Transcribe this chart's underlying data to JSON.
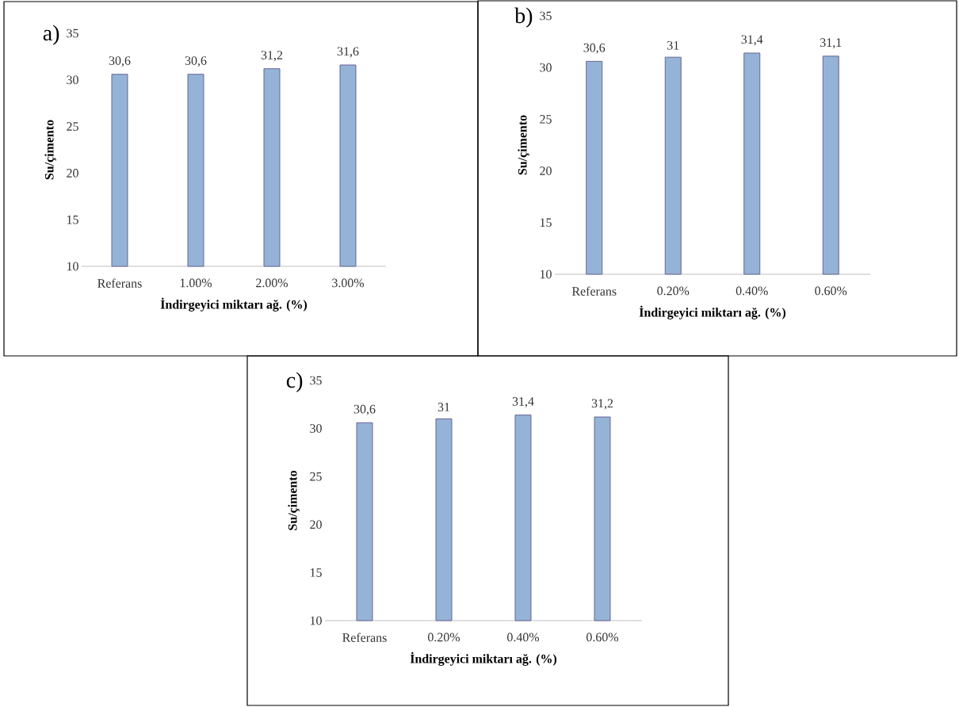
{
  "chart_data": [
    {
      "type": "bar",
      "title": "a)",
      "xlabel": "İndirgeyici miktarı ağ. (%)",
      "ylabel": "Su/çimento",
      "categories": [
        "Referans",
        "1.00%",
        "2.00%",
        "3.00%"
      ],
      "values": [
        30.6,
        30.6,
        31.2,
        31.6
      ],
      "value_labels": [
        "30,6",
        "30,6",
        "31,2",
        "31,6"
      ],
      "color": "#95b3d7",
      "ylim": [
        10,
        35
      ],
      "yticks": [
        10,
        15,
        20,
        25,
        30,
        35
      ]
    },
    {
      "type": "bar",
      "title": "b)",
      "xlabel": "İndirgeyici miktarı ağ. (%)",
      "ylabel": "Su/çimento",
      "categories": [
        "Referans",
        "0.20%",
        "0.40%",
        "0.60%"
      ],
      "values": [
        30.6,
        31,
        31.4,
        31.1
      ],
      "value_labels": [
        "30,6",
        "31",
        "31,4",
        "31,1"
      ],
      "color": "#95b3d7",
      "ylim": [
        10,
        35
      ],
      "yticks": [
        10,
        15,
        20,
        25,
        30,
        35
      ]
    },
    {
      "type": "bar",
      "title": "c)",
      "xlabel": "İndirgeyici miktarı ağ. (%)",
      "ylabel": "Su/çimento",
      "categories": [
        "Referans",
        "0.20%",
        "0.40%",
        "0.60%"
      ],
      "values": [
        30.6,
        31,
        31.4,
        31.2
      ],
      "value_labels": [
        "30,6",
        "31",
        "31,4",
        "31,2"
      ],
      "color": "#95b3d7",
      "ylim": [
        10,
        35
      ],
      "yticks": [
        10,
        15,
        20,
        25,
        30,
        35
      ]
    }
  ]
}
